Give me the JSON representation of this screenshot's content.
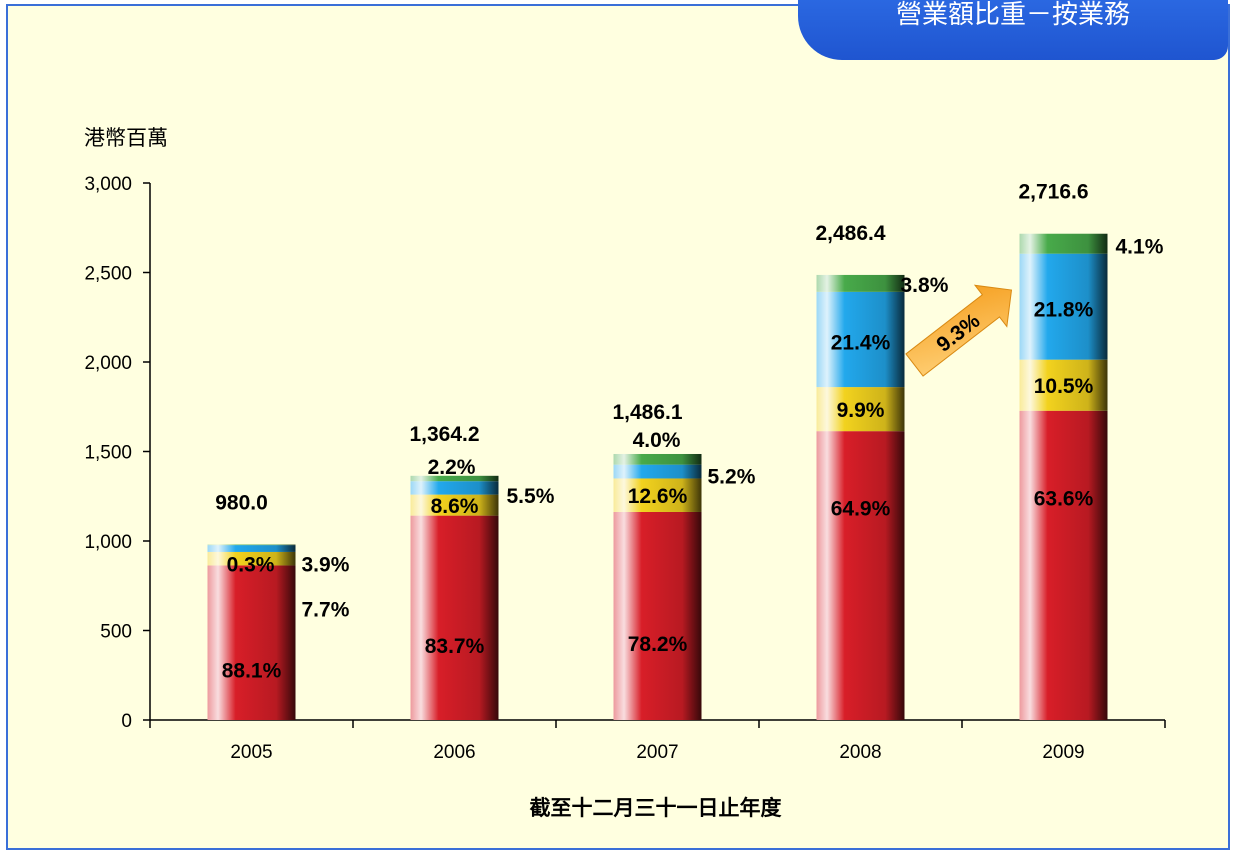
{
  "title": "營業額比重－按業務",
  "chart_data": {
    "type": "bar",
    "stacked": true,
    "unit_label": "港幣百萬",
    "xlabel": "截至十二月三十一日止年度",
    "ylabel": "",
    "ylim": [
      0,
      3000
    ],
    "yticks": [
      0,
      500,
      1000,
      1500,
      2000,
      2500,
      3000
    ],
    "ytick_labels": [
      "0",
      "500",
      "1,000",
      "1,500",
      "2,000",
      "2,500",
      "3,000"
    ],
    "categories": [
      "2005",
      "2006",
      "2007",
      "2008",
      "2009"
    ],
    "totals": [
      980.0,
      1364.2,
      1486.1,
      2486.4,
      2716.6
    ],
    "total_labels": [
      "980.0",
      "1,364.2",
      "1,486.1",
      "2,486.4",
      "2,716.6"
    ],
    "series": [
      {
        "color": "#d81e28",
        "percent": [
          88.1,
          83.7,
          78.2,
          64.9,
          63.6
        ],
        "labels": [
          "88.1%",
          "83.7%",
          "78.2%",
          "64.9%",
          "63.6%"
        ]
      },
      {
        "color": "#f2d21e",
        "percent": [
          7.7,
          8.6,
          12.6,
          9.9,
          10.5
        ],
        "labels": [
          "7.7%",
          "8.6%",
          "12.6%",
          "9.9%",
          "10.5%"
        ]
      },
      {
        "color": "#22a8ec",
        "percent": [
          3.9,
          5.5,
          5.2,
          21.4,
          21.8
        ],
        "labels": [
          "3.9%",
          "5.5%",
          "5.2%",
          "21.4%",
          "21.8%"
        ]
      },
      {
        "color": "#48aa4a",
        "percent": [
          0.3,
          2.2,
          4.0,
          3.8,
          4.1
        ],
        "labels": [
          "0.3%",
          "2.2%",
          "4.0%",
          "3.8%",
          "4.1%"
        ]
      }
    ],
    "annotation": {
      "text": "9.3%",
      "from": "2008",
      "to": "2009",
      "color": "#f59d1c"
    },
    "grid": false,
    "legend": "none"
  }
}
